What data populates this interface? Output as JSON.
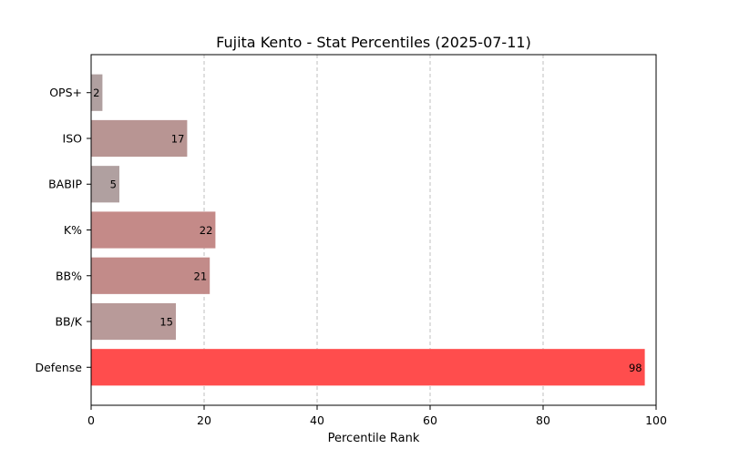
{
  "chart_data": {
    "type": "bar",
    "orientation": "horizontal",
    "title": "Fujita Kento - Stat Percentiles (2025-07-11)",
    "xlabel": "Percentile Rank",
    "ylabel": "",
    "xlim": [
      0,
      100
    ],
    "xticks": [
      0,
      20,
      40,
      60,
      80,
      100
    ],
    "grid": "x-axis dashed",
    "categories": [
      "OPS+",
      "ISO",
      "BABIP",
      "K%",
      "BB%",
      "BB/K",
      "Defense"
    ],
    "values": [
      2,
      17,
      5,
      22,
      21,
      15,
      98
    ],
    "colors": [
      "#b0a0a0",
      "#b89593",
      "#b0a0a0",
      "#c48a88",
      "#c28b89",
      "#b89a99",
      "#ff4d4d"
    ]
  }
}
